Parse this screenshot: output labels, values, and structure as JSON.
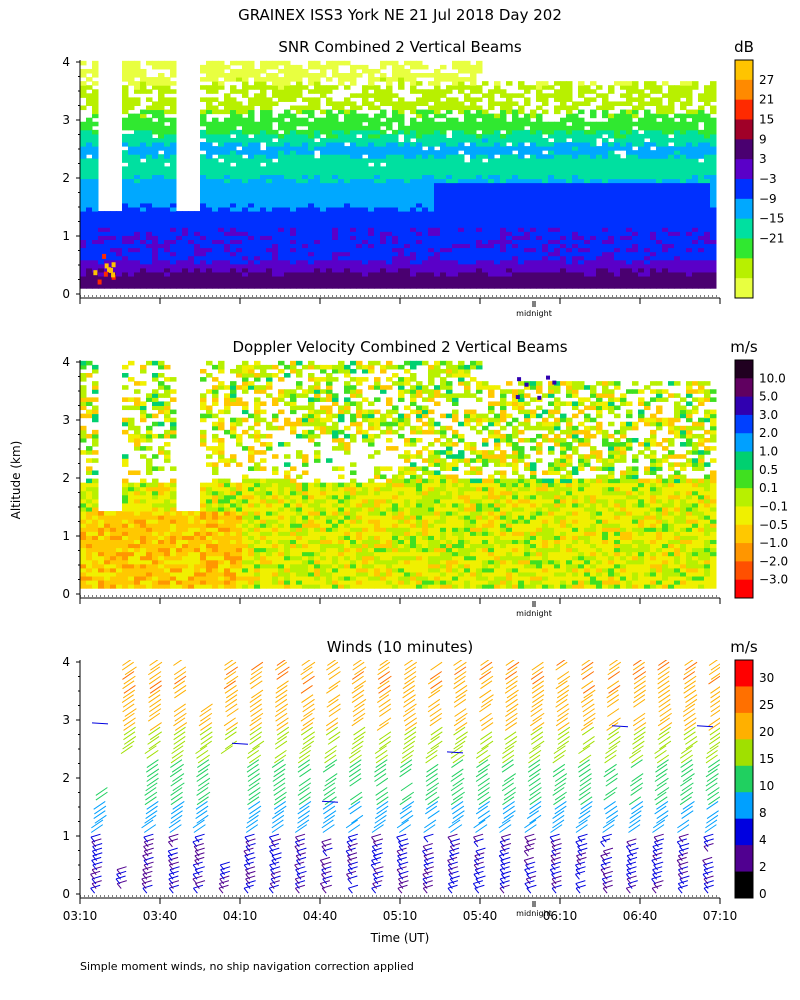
{
  "figure": {
    "title": "GRAINEX ISS3 York NE  21 Jul 2018 Day 202",
    "ylabel": "Altitude (km)",
    "xlabel": "Time (UT)",
    "footnote": "Simple moment winds, no ship navigation correction applied",
    "midnight_label": "midnight",
    "x_ticks": [
      "03:10",
      "03:40",
      "04:10",
      "04:40",
      "05:10",
      "05:40",
      "06:10",
      "06:40",
      "07:10"
    ]
  },
  "chart_data": [
    {
      "type": "heatmap",
      "title": "SNR Combined 2 Vertical Beams",
      "colorbar": {
        "unit": "dB",
        "labels": [
          "27",
          "21",
          "15",
          "9",
          "3",
          "−3",
          "−9",
          "−15",
          "−21"
        ],
        "colors": [
          "#ffc400",
          "#ff8a00",
          "#ff2a00",
          "#a00028",
          "#4a0070",
          "#5a00c8",
          "#0030ff",
          "#00a8ff",
          "#00e0a0",
          "#30e830",
          "#b8f000",
          "#e8ff40"
        ]
      },
      "ylim": [
        0,
        4
      ],
      "y_ticks": [
        "0",
        "1",
        "2",
        "3",
        "4"
      ],
      "x_range": [
        "03:10",
        "07:10"
      ],
      "layers": [
        {
          "from_km": 0.1,
          "to_km": 0.55,
          "level": "3 to 9 dB"
        },
        {
          "from_km": 0.55,
          "to_km": 1.4,
          "level": "-3 to 3 dB"
        },
        {
          "from_km": 1.4,
          "to_km": 1.9,
          "level": "-9 to -3 dB"
        },
        {
          "from_km": 1.9,
          "to_km": 2.4,
          "level": "-15 to -9 dB"
        },
        {
          "from_km": 2.4,
          "to_km": 2.8,
          "level": "-9 to -3 dB"
        },
        {
          "from_km": 2.8,
          "to_km": 4.0,
          "level": "-21 to -15 dB"
        }
      ]
    },
    {
      "type": "heatmap",
      "title": "Doppler Velocity Combined 2 Vertical Beams",
      "colorbar": {
        "unit": "m/s",
        "labels": [
          "10.0",
          "5.0",
          "3.0",
          "2.0",
          "1.0",
          "0.5",
          "0.1",
          "−0.1",
          "−0.5",
          "−1.0",
          "−2.0",
          "−3.0"
        ],
        "colors": [
          "#200020",
          "#600060",
          "#3000b0",
          "#0040ff",
          "#00a0ff",
          "#00d070",
          "#40e020",
          "#b8f000",
          "#f0f000",
          "#ffc800",
          "#ff9600",
          "#ff5000",
          "#ff0000"
        ]
      },
      "ylim": [
        0,
        4
      ],
      "y_ticks": [
        "0",
        "1",
        "2",
        "3",
        "4"
      ],
      "x_range": [
        "03:10",
        "07:10"
      ]
    },
    {
      "type": "scatter",
      "title": "Winds (10 minutes)",
      "colorbar": {
        "unit": "m/s",
        "labels": [
          "30",
          "25",
          "20",
          "15",
          "10",
          "8",
          "4",
          "2",
          "0"
        ],
        "colors": [
          "#ff0000",
          "#ff7000",
          "#ffb000",
          "#a0e000",
          "#20d060",
          "#00a0ff",
          "#0000e0",
          "#500090",
          "#000000"
        ]
      },
      "ylim": [
        0,
        4
      ],
      "y_ticks": [
        "0",
        "1",
        "2",
        "3",
        "4"
      ],
      "x_range": [
        "03:10",
        "07:10"
      ],
      "interval_minutes": 10
    }
  ]
}
